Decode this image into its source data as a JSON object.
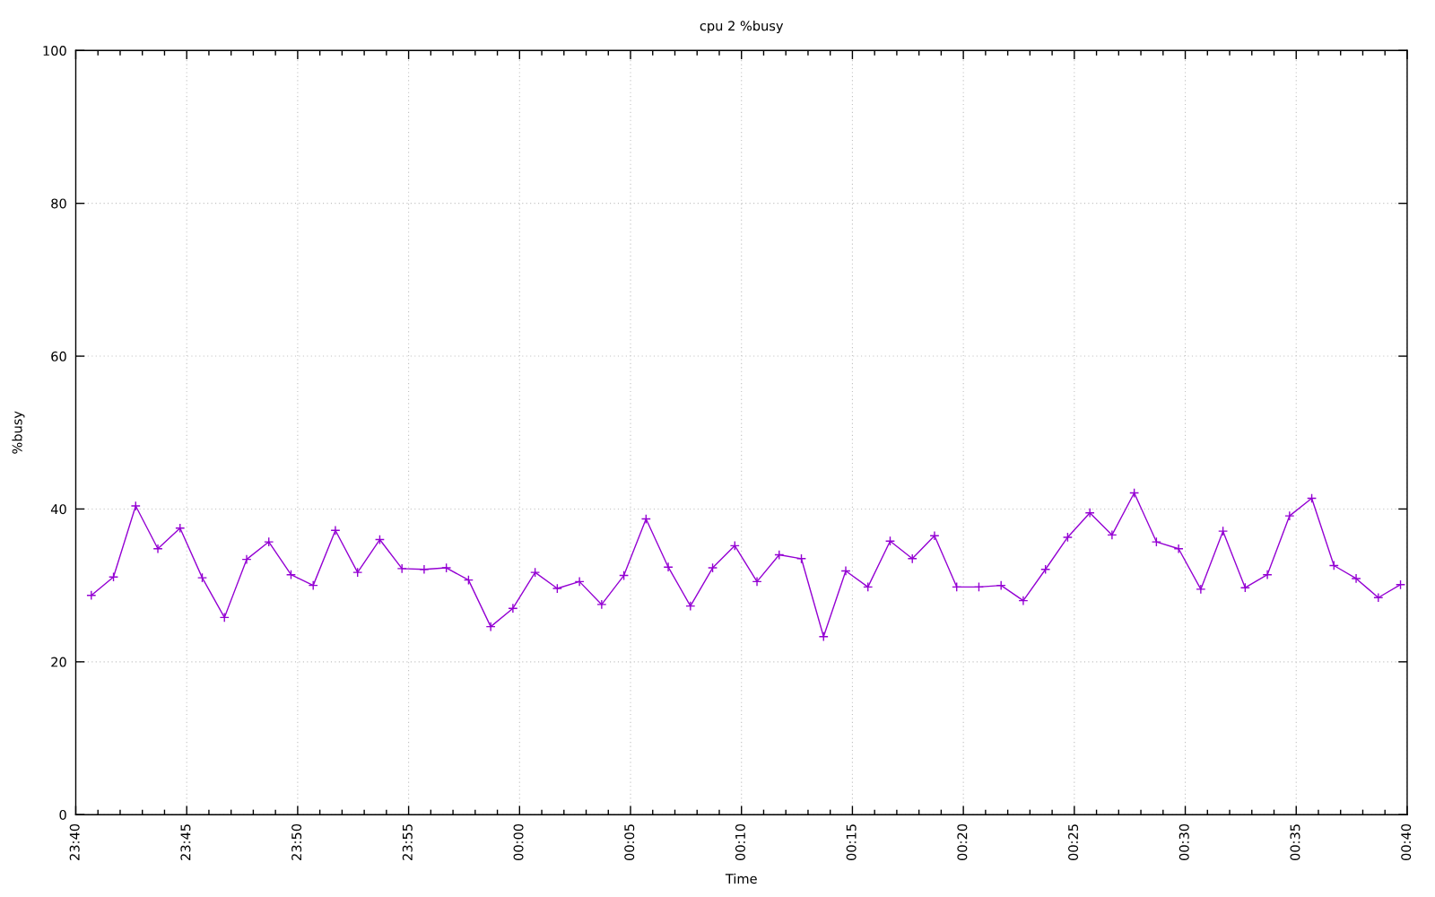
{
  "chart_data": {
    "type": "line",
    "title": "cpu 2 %busy",
    "xlabel": "Time",
    "ylabel": "%busy",
    "x": [
      "2000-01-01T23:40:42",
      "2000-01-01T23:41:42",
      "2000-01-01T23:42:42",
      "2000-01-01T23:43:42",
      "2000-01-01T23:44:42",
      "2000-01-01T23:45:42",
      "2000-01-01T23:46:42",
      "2000-01-01T23:47:42",
      "2000-01-01T23:48:42",
      "2000-01-01T23:49:42",
      "2000-01-01T23:50:42",
      "2000-01-01T23:51:42",
      "2000-01-01T23:52:42",
      "2000-01-01T23:53:42",
      "2000-01-01T23:54:42",
      "2000-01-01T23:55:42",
      "2000-01-01T23:56:42",
      "2000-01-01T23:57:42",
      "2000-01-01T23:58:42",
      "2000-01-01T23:59:42",
      "2000-01-02T00:00:42",
      "2000-01-02T00:01:42",
      "2000-01-02T00:02:42",
      "2000-01-02T00:03:42",
      "2000-01-02T00:04:42",
      "2000-01-02T00:05:42",
      "2000-01-02T00:06:42",
      "2000-01-02T00:07:42",
      "2000-01-02T00:08:42",
      "2000-01-02T00:09:42",
      "2000-01-02T00:10:42",
      "2000-01-02T00:11:42",
      "2000-01-02T00:12:42",
      "2000-01-02T00:13:42",
      "2000-01-02T00:14:42",
      "2000-01-02T00:15:42",
      "2000-01-02T00:16:42",
      "2000-01-02T00:17:42",
      "2000-01-02T00:18:42",
      "2000-01-02T00:19:42",
      "2000-01-02T00:20:42",
      "2000-01-02T00:21:42",
      "2000-01-02T00:22:42",
      "2000-01-02T00:23:42",
      "2000-01-02T00:24:42",
      "2000-01-02T00:25:42",
      "2000-01-02T00:26:42",
      "2000-01-02T00:27:42",
      "2000-01-02T00:28:42",
      "2000-01-02T00:29:42",
      "2000-01-02T00:30:42",
      "2000-01-02T00:31:42",
      "2000-01-02T00:32:42",
      "2000-01-02T00:33:42",
      "2000-01-02T00:34:42",
      "2000-01-02T00:35:42",
      "2000-01-02T00:36:42",
      "2000-01-02T00:37:42",
      "2000-01-02T00:38:42",
      "2000-01-02T00:39:42"
    ],
    "series": [
      {
        "color": "#9400d3",
        "values": [
          28.7,
          31.1,
          40.4,
          34.8,
          37.5,
          31.0,
          25.8,
          33.4,
          35.7,
          31.4,
          30.0,
          37.2,
          31.7,
          36.0,
          32.2,
          32.1,
          32.3,
          30.7,
          24.6,
          27.0,
          31.7,
          29.6,
          30.5,
          27.5,
          31.3,
          38.7,
          32.4,
          27.3,
          32.3,
          35.2,
          30.5,
          34.0,
          33.5,
          23.3,
          31.9,
          29.8,
          35.8,
          33.5,
          36.5,
          29.8,
          29.8,
          30.0,
          28.0,
          32.1,
          36.3,
          39.5,
          36.6,
          42.1,
          35.7,
          34.8,
          29.5,
          37.1,
          29.7,
          31.4,
          39.1,
          41.4,
          32.6,
          30.9,
          28.4,
          30.1
        ]
      }
    ],
    "xlim": [
      "2000-01-01T23:40",
      "2000-01-02T00:40"
    ],
    "xticks": [
      {
        "value": "2000-01-01T23:40",
        "label": "23:40"
      },
      {
        "value": "2000-01-01T23:41",
        "label": null
      },
      {
        "value": "2000-01-01T23:42",
        "label": null
      },
      {
        "value": "2000-01-01T23:43",
        "label": null
      },
      {
        "value": "2000-01-01T23:44",
        "label": null
      },
      {
        "value": "2000-01-01T23:45",
        "label": "23:45"
      },
      {
        "value": "2000-01-01T23:46",
        "label": null
      },
      {
        "value": "2000-01-01T23:47",
        "label": null
      },
      {
        "value": "2000-01-01T23:48",
        "label": null
      },
      {
        "value": "2000-01-01T23:49",
        "label": null
      },
      {
        "value": "2000-01-01T23:50",
        "label": "23:50"
      },
      {
        "value": "2000-01-01T23:51",
        "label": null
      },
      {
        "value": "2000-01-01T23:52",
        "label": null
      },
      {
        "value": "2000-01-01T23:53",
        "label": null
      },
      {
        "value": "2000-01-01T23:54",
        "label": null
      },
      {
        "value": "2000-01-01T23:55",
        "label": "23:55"
      },
      {
        "value": "2000-01-01T23:56",
        "label": null
      },
      {
        "value": "2000-01-01T23:57",
        "label": null
      },
      {
        "value": "2000-01-01T23:58",
        "label": null
      },
      {
        "value": "2000-01-01T23:59",
        "label": null
      },
      {
        "value": "2000-01-02T00:00",
        "label": "00:00"
      },
      {
        "value": "2000-01-02T00:01",
        "label": null
      },
      {
        "value": "2000-01-02T00:02",
        "label": null
      },
      {
        "value": "2000-01-02T00:03",
        "label": null
      },
      {
        "value": "2000-01-02T00:04",
        "label": null
      },
      {
        "value": "2000-01-02T00:05",
        "label": "00:05"
      },
      {
        "value": "2000-01-02T00:06",
        "label": null
      },
      {
        "value": "2000-01-02T00:07",
        "label": null
      },
      {
        "value": "2000-01-02T00:08",
        "label": null
      },
      {
        "value": "2000-01-02T00:09",
        "label": null
      },
      {
        "value": "2000-01-02T00:10",
        "label": "00:10"
      },
      {
        "value": "2000-01-02T00:11",
        "label": null
      },
      {
        "value": "2000-01-02T00:12",
        "label": null
      },
      {
        "value": "2000-01-02T00:13",
        "label": null
      },
      {
        "value": "2000-01-02T00:14",
        "label": null
      },
      {
        "value": "2000-01-02T00:15",
        "label": "00:15"
      },
      {
        "value": "2000-01-02T00:16",
        "label": null
      },
      {
        "value": "2000-01-02T00:17",
        "label": null
      },
      {
        "value": "2000-01-02T00:18",
        "label": null
      },
      {
        "value": "2000-01-02T00:19",
        "label": null
      },
      {
        "value": "2000-01-02T00:20",
        "label": "00:20"
      },
      {
        "value": "2000-01-02T00:21",
        "label": null
      },
      {
        "value": "2000-01-02T00:22",
        "label": null
      },
      {
        "value": "2000-01-02T00:23",
        "label": null
      },
      {
        "value": "2000-01-02T00:24",
        "label": null
      },
      {
        "value": "2000-01-02T00:25",
        "label": "00:25"
      },
      {
        "value": "2000-01-02T00:26",
        "label": null
      },
      {
        "value": "2000-01-02T00:27",
        "label": null
      },
      {
        "value": "2000-01-02T00:28",
        "label": null
      },
      {
        "value": "2000-01-02T00:29",
        "label": null
      },
      {
        "value": "2000-01-02T00:30",
        "label": "00:30"
      },
      {
        "value": "2000-01-02T00:31",
        "label": null
      },
      {
        "value": "2000-01-02T00:32",
        "label": null
      },
      {
        "value": "2000-01-02T00:33",
        "label": null
      },
      {
        "value": "2000-01-02T00:34",
        "label": null
      },
      {
        "value": "2000-01-02T00:35",
        "label": "00:35"
      },
      {
        "value": "2000-01-02T00:36",
        "label": null
      },
      {
        "value": "2000-01-02T00:37",
        "label": null
      },
      {
        "value": "2000-01-02T00:38",
        "label": null
      },
      {
        "value": "2000-01-02T00:39",
        "label": null
      },
      {
        "value": "2000-01-02T00:40",
        "label": "00:40"
      }
    ],
    "ylim": [
      0,
      100
    ],
    "yticks": [
      0,
      20,
      40,
      60,
      80,
      100
    ],
    "grid": true,
    "marker": "cross",
    "line_style": "solid"
  }
}
